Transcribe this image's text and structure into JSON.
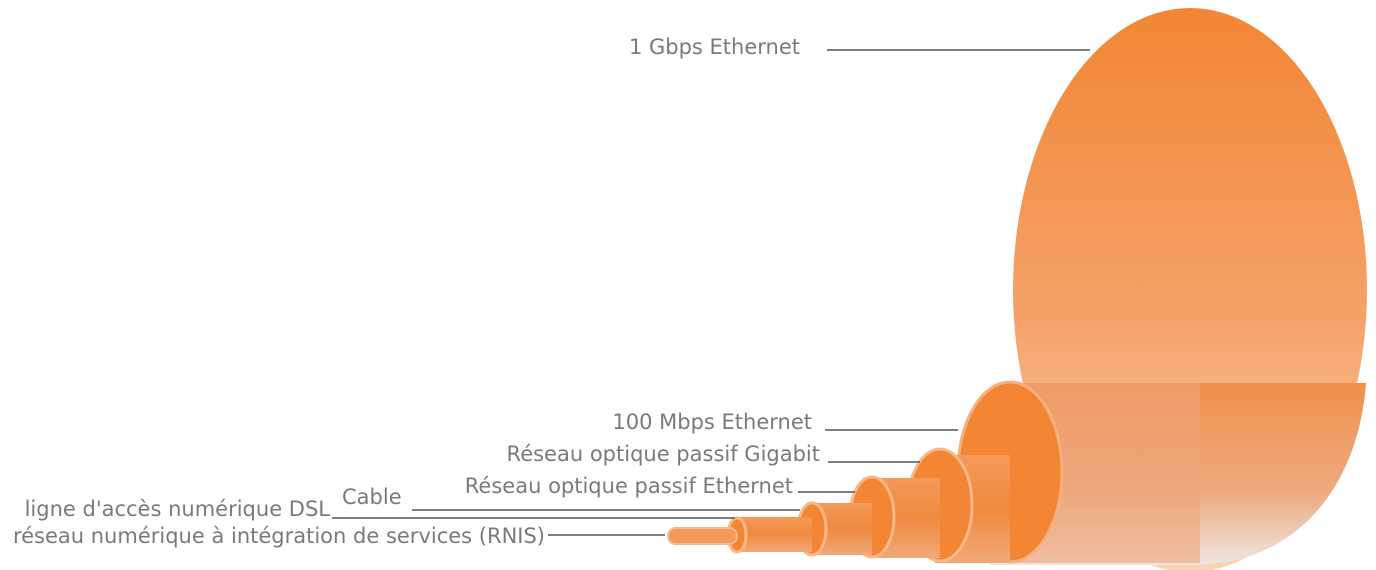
{
  "labels": [
    "1 Gbps Ethernet",
    "100 Mbps Ethernet",
    "Réseau optique passif Gigabit",
    "Réseau optique passif Ethernet",
    "Cable",
    "ligne d'accès numérique DSL",
    "réseau numérique à intégration de services (RNIS)"
  ]
}
